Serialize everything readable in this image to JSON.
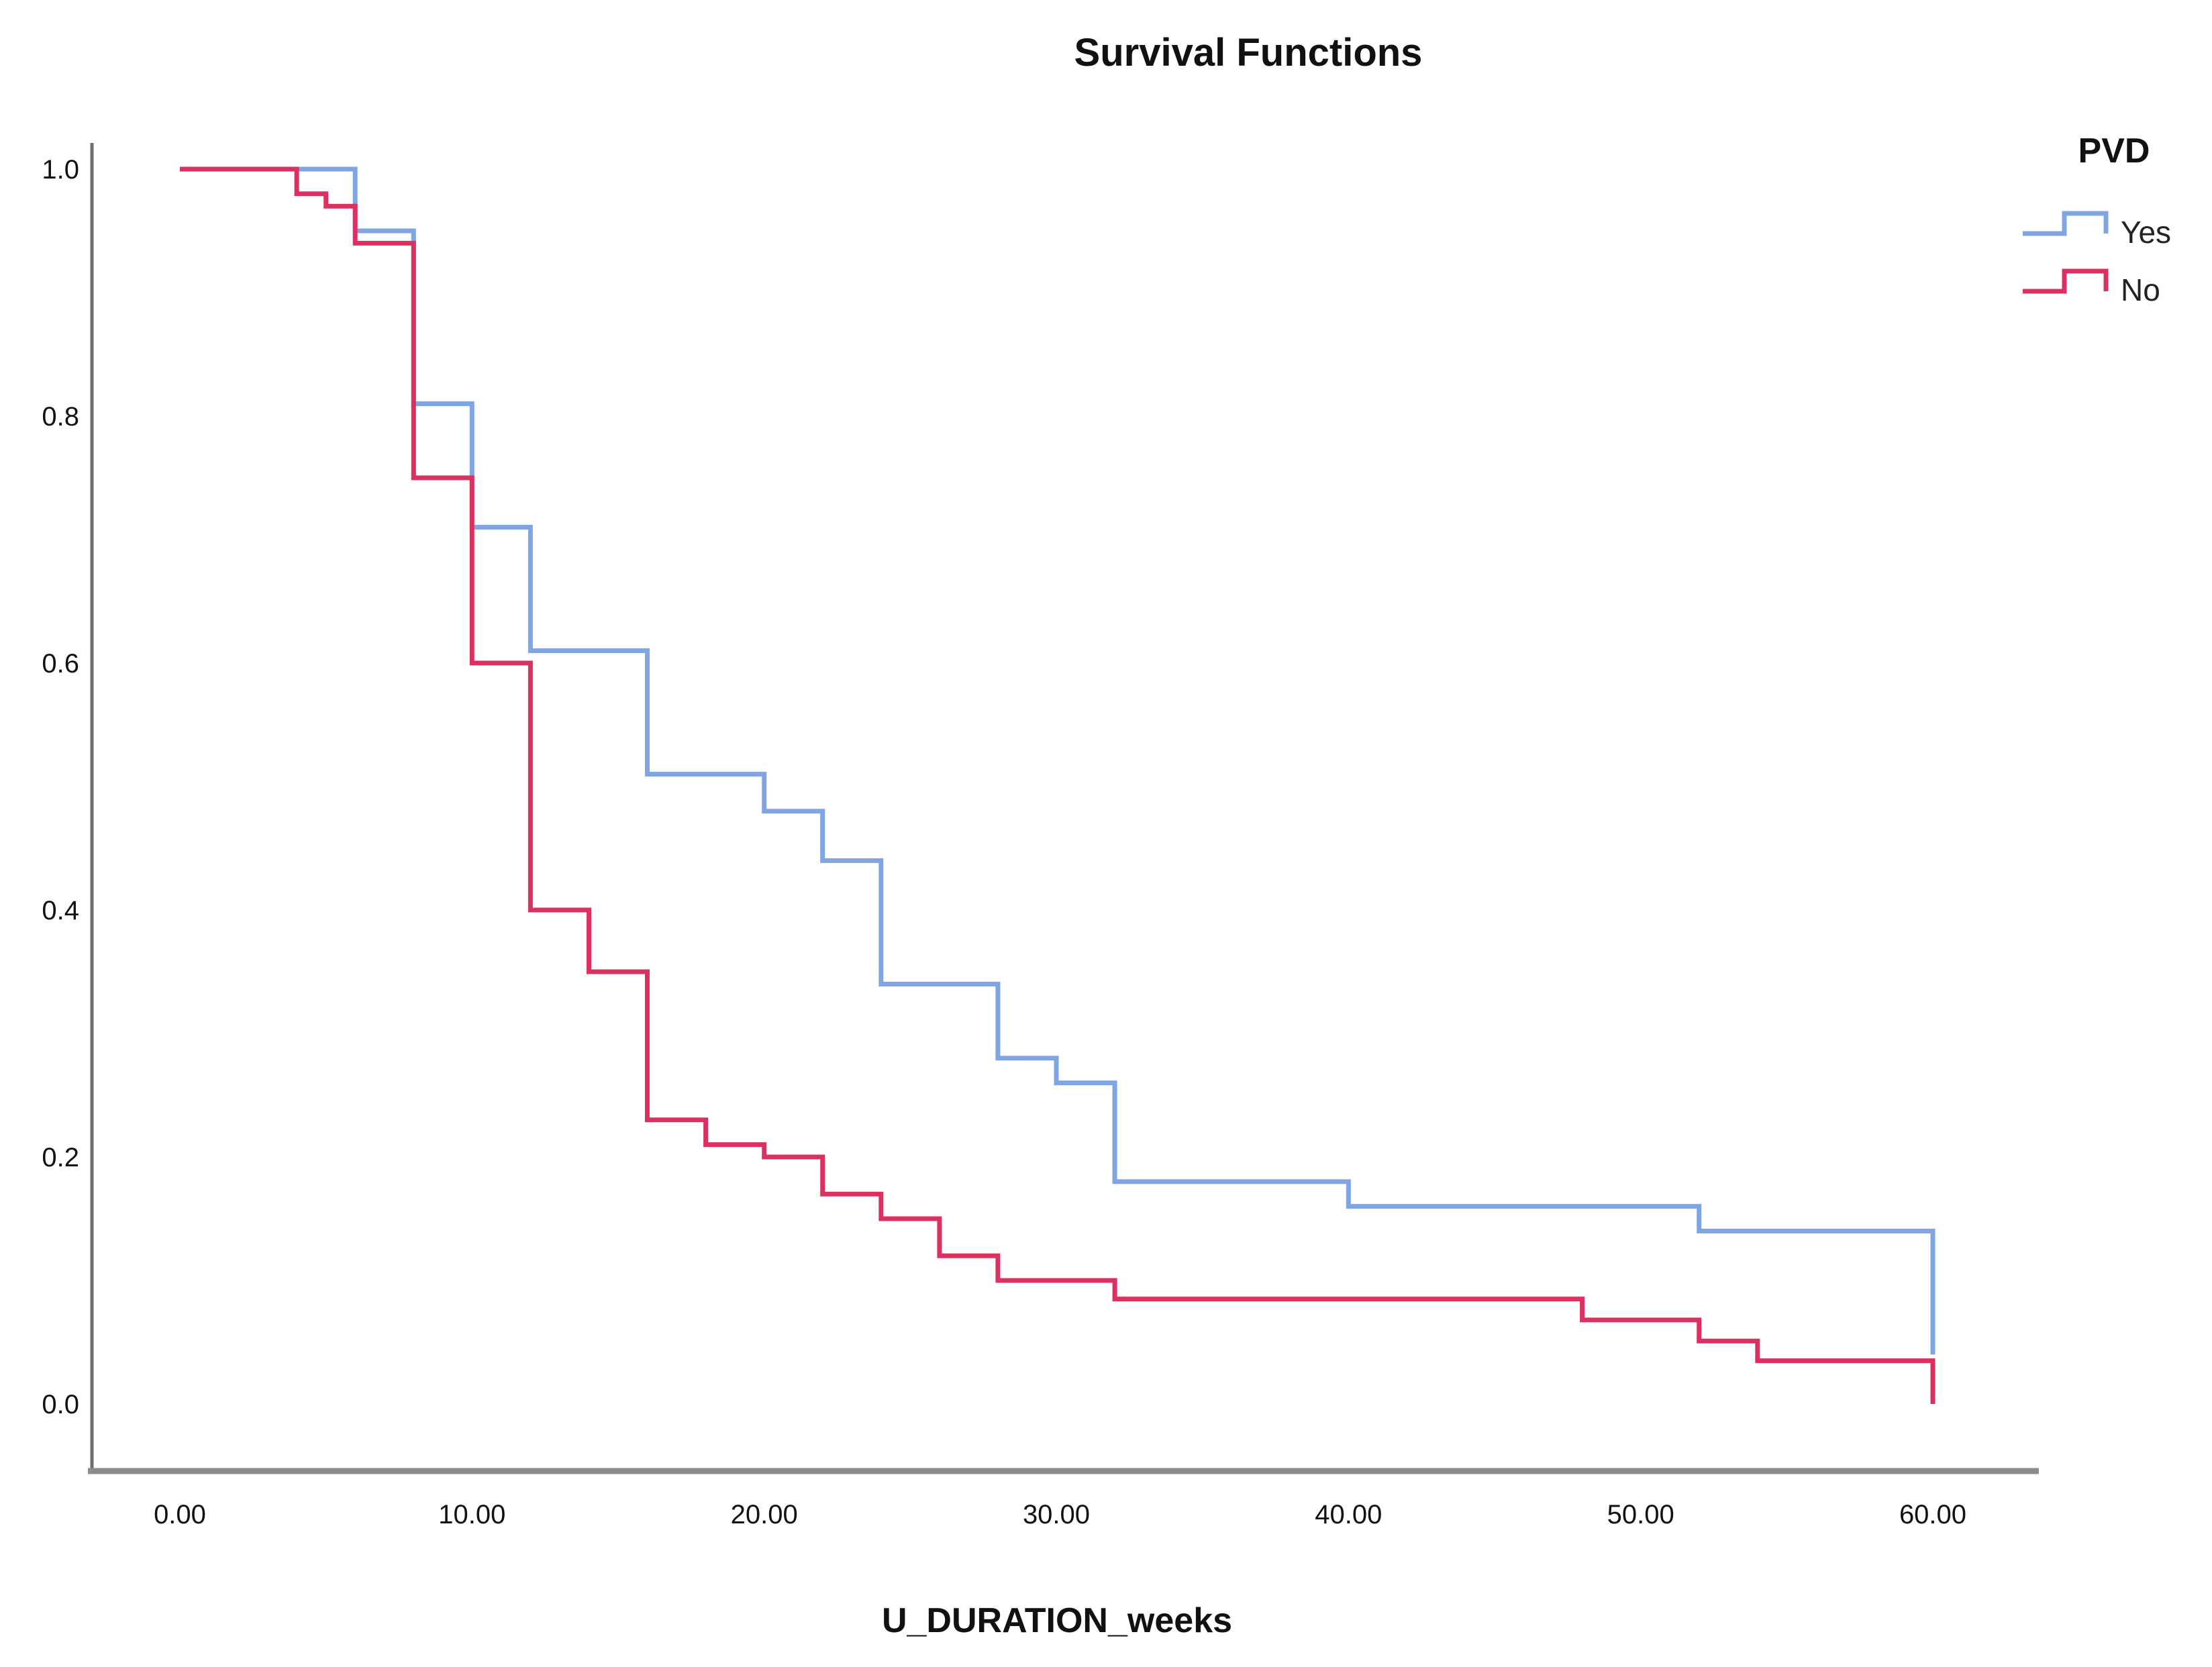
{
  "title": "Survival Functions",
  "x_axis": {
    "label": "U_DURATION_weeks",
    "min": 0,
    "max": 60,
    "ticks": [
      {
        "value": 0,
        "label": "0.00"
      },
      {
        "value": 10,
        "label": "10.00"
      },
      {
        "value": 20,
        "label": "20.00"
      },
      {
        "value": 30,
        "label": "30.00"
      },
      {
        "value": 40,
        "label": "40.00"
      },
      {
        "value": 50,
        "label": "50.00"
      },
      {
        "value": 60,
        "label": "60.00"
      }
    ]
  },
  "y_axis": {
    "min": 0.0,
    "max": 1.0,
    "ticks": [
      {
        "value": 1.0,
        "label": "1.0"
      },
      {
        "value": 0.8,
        "label": "0.8"
      },
      {
        "value": 0.6,
        "label": "0.6"
      },
      {
        "value": 0.4,
        "label": "0.4"
      },
      {
        "value": 0.2,
        "label": "0.2"
      },
      {
        "value": 0.0,
        "label": "0.0"
      }
    ]
  },
  "legend": {
    "title": "PVD",
    "entries": [
      {
        "label": "Yes"
      },
      {
        "label": "No"
      }
    ]
  },
  "colors": {
    "yes_line": "#7FA5E4",
    "no_line": "#DC3060",
    "axis_line": "#8C8C8C",
    "text": "#111111",
    "background": "#FFFFFF"
  },
  "chart_data": {
    "type": "line",
    "subtype": "kaplan-meier-step",
    "title": "Survival Functions",
    "xlabel": "U_DURATION_weeks",
    "ylabel": "",
    "xlim": [
      0,
      63
    ],
    "ylim": [
      0.0,
      1.05
    ],
    "grid": false,
    "legend_position": "top-right",
    "legend_title": "PVD",
    "x_units": "weeks",
    "series": [
      {
        "name": "Yes",
        "color": "#7FA5E4",
        "steps_format": "[time_weeks, survival_probability_after_time]",
        "steps": [
          [
            0,
            1.0
          ],
          [
            6,
            0.95
          ],
          [
            8,
            0.81
          ],
          [
            10,
            0.71
          ],
          [
            12,
            0.61
          ],
          [
            16,
            0.51
          ],
          [
            20,
            0.48
          ],
          [
            22,
            0.44
          ],
          [
            24,
            0.34
          ],
          [
            28,
            0.28
          ],
          [
            30,
            0.26
          ],
          [
            32,
            0.18
          ],
          [
            40,
            0.16
          ],
          [
            52,
            0.14
          ],
          [
            60,
            0.04
          ]
        ]
      },
      {
        "name": "No",
        "color": "#DC3060",
        "steps_format": "[time_weeks, survival_probability_after_time]",
        "steps": [
          [
            0,
            1.0
          ],
          [
            4,
            0.98
          ],
          [
            5,
            0.97
          ],
          [
            6,
            0.94
          ],
          [
            8,
            0.75
          ],
          [
            10,
            0.6
          ],
          [
            12,
            0.4
          ],
          [
            14,
            0.35
          ],
          [
            16,
            0.23
          ],
          [
            18,
            0.21
          ],
          [
            20,
            0.2
          ],
          [
            22,
            0.17
          ],
          [
            24,
            0.15
          ],
          [
            26,
            0.12
          ],
          [
            28,
            0.1
          ],
          [
            32,
            0.085
          ],
          [
            48,
            0.068
          ],
          [
            52,
            0.051
          ],
          [
            54,
            0.035
          ],
          [
            60,
            0.0
          ]
        ]
      }
    ]
  }
}
